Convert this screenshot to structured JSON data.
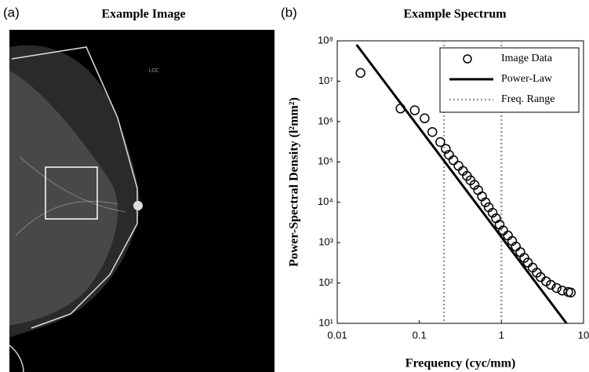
{
  "panel_a": {
    "label": "(a)",
    "title": "Example Image",
    "marker": "LCC"
  },
  "chart_data": {
    "type": "scatter-line",
    "label": "(b)",
    "title": "Example Spectrum",
    "x_label": "Frequency (cyc/mm)",
    "y_label": "Power-Spectral Density (l²mm²)",
    "log_x": true,
    "log_y": true,
    "xlim": [
      0.01,
      10
    ],
    "xticks": [
      0.01,
      0.1,
      1,
      10
    ],
    "ylim": [
      10,
      100000000
    ],
    "yticks": [
      {
        "value": 10,
        "label": "10¹"
      },
      {
        "value": 100,
        "label": "10²"
      },
      {
        "value": 1000,
        "label": "10³"
      },
      {
        "value": 10000,
        "label": "10⁴"
      },
      {
        "value": 100000,
        "label": "10⁵"
      },
      {
        "value": 1000000,
        "label": "10⁶"
      },
      {
        "value": 10000000,
        "label": "10⁷"
      },
      {
        "value": 100000000,
        "label": "10⁸"
      }
    ],
    "legend": "top-right",
    "series": [
      {
        "name": "Image Data",
        "style": "hollow-circle",
        "color": "#000000",
        "x": [
          0.0192,
          0.059,
          0.088,
          0.116,
          0.144,
          0.18,
          0.21,
          0.23,
          0.26,
          0.3,
          0.34,
          0.38,
          0.42,
          0.47,
          0.52,
          0.58,
          0.64,
          0.7,
          0.78,
          0.86,
          0.95,
          1.05,
          1.2,
          1.35,
          1.5,
          1.7,
          1.9,
          2.1,
          2.4,
          2.7,
          3.0,
          3.5,
          4.0,
          4.7,
          5.5,
          6.5,
          7.0
        ],
        "values": [
          16000000,
          2100000,
          1900000,
          1200000,
          550000,
          310000,
          210000,
          150000,
          110000,
          80000,
          60000,
          45000,
          35000,
          27000,
          20000,
          14000,
          10000,
          7500,
          5500,
          4000,
          2800,
          2000,
          1500,
          1100,
          800,
          580,
          420,
          320,
          240,
          180,
          140,
          110,
          90,
          75,
          65,
          60,
          58
        ]
      },
      {
        "name": "Power-Law",
        "style": "solid-line",
        "color": "#000000",
        "x": [
          0.0172,
          6.2
        ],
        "values": [
          80000000,
          10
        ]
      }
    ],
    "freq_range": {
      "name": "Freq. Range",
      "color": "#999999",
      "x": [
        0.2,
        1
      ]
    }
  }
}
